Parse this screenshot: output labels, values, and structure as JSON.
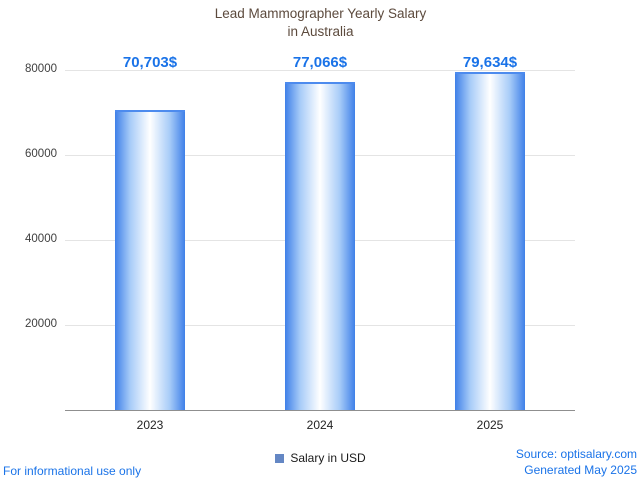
{
  "title": "Lead Mammographer Yearly Salary\nin Australia",
  "chart_data": {
    "type": "bar",
    "title": "Lead Mammographer Yearly Salary in Australia",
    "categories": [
      "2023",
      "2024",
      "2025"
    ],
    "values": [
      70703,
      77066,
      79634
    ],
    "value_labels": [
      "70,703$",
      "77,066$",
      "79,634$"
    ],
    "series": [
      {
        "name": "Salary in USD",
        "values": [
          70703,
          77066,
          79634
        ]
      }
    ],
    "xlabel": "",
    "ylabel": "",
    "ylim": [
      0,
      80000
    ],
    "yticks": [
      20000,
      40000,
      60000,
      80000
    ],
    "ytick_labels": [
      "20000",
      "40000",
      "60000",
      "80000"
    ],
    "grid": true,
    "legend_position": "bottom",
    "bar_colors": {
      "edge": "#3f80e8",
      "center": "#ffffff"
    }
  },
  "legend": {
    "label": "Salary in USD"
  },
  "footer": {
    "disclaimer": "For informational use only",
    "source": "Source: optisalary.com",
    "generated": "Generated May 2025"
  },
  "colors": {
    "value_label": "#1a73e8",
    "footer_text": "#1a73e8",
    "title_text": "#5c4a3d",
    "axis_text": "#404040",
    "gridline": "#e4e4e4",
    "legend_swatch": "#6487c4"
  }
}
